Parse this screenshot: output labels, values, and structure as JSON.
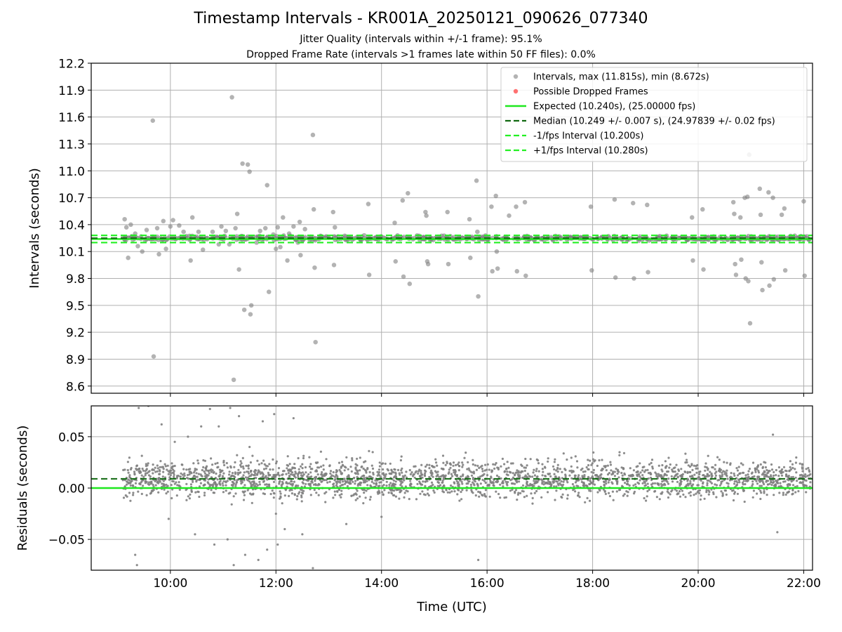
{
  "title": "Timestamp Intervals - KR001A_20250121_090626_077340",
  "subtitle_1": "Jitter Quality (intervals within +/-1 frame): 95.1%",
  "subtitle_2": "Dropped Frame Rate (intervals >1 frames late within 50 FF files): 0.0%",
  "colors": {
    "points": "#808080",
    "dropped": "#ff4d4d",
    "expected": "#1ee81e",
    "median": "#106810",
    "bounds": "#22f022",
    "grid": "#b0b0b0"
  },
  "chart_data": [
    {
      "type": "scatter",
      "ylabel": "Intervals (seconds)",
      "xlabel": "",
      "ylim": [
        8.52,
        12.2
      ],
      "yticks": [
        12.2,
        11.9,
        11.6,
        11.3,
        11.0,
        10.7,
        10.4,
        10.1,
        9.8,
        9.5,
        9.2,
        8.9,
        8.6
      ],
      "ytick_labels": [
        "12.2",
        "11.9",
        "11.6",
        "11.3",
        "11.0",
        "10.7",
        "10.4",
        "10.1",
        "9.8",
        "9.5",
        "9.2",
        "8.9",
        "8.6"
      ],
      "xlim": [
        "08:30",
        "22:10"
      ],
      "grid": true,
      "legend_position": "top-right",
      "legend": [
        {
          "label": "Intervals, max (11.815s), min (8.672s)",
          "marker": "dot-gray"
        },
        {
          "label": "Possible Dropped Frames",
          "marker": "dot-red"
        },
        {
          "label": "Expected (10.240s), (25.00000 fps)",
          "marker": "line-solid-green"
        },
        {
          "label": "Median (10.249 +/- 0.007 s), (24.97839 +/- 0.02 fps)",
          "marker": "line-dashed-darkgreen"
        },
        {
          "label": "-1/fps Interval (10.200s)",
          "marker": "line-dashed-green"
        },
        {
          "label": "+1/fps Interval (10.280s)",
          "marker": "line-dashed-green"
        }
      ],
      "series": [
        {
          "name": "Expected (10.240s), (25.00000 fps)",
          "y": 10.24,
          "style": "solid"
        },
        {
          "name": "Median (10.249 +/- 0.007 s), (24.97839 +/- 0.02 fps)",
          "y": 10.249,
          "style": "dashed"
        },
        {
          "name": "-1/fps Interval (10.200s)",
          "y": 10.2,
          "style": "dashed"
        },
        {
          "name": "+1/fps Interval (10.280s)",
          "y": 10.28,
          "style": "dashed"
        }
      ],
      "core_band": {
        "x_start": "09:06",
        "x_end": "22:08",
        "y_center": 10.249,
        "spread": 0.02
      },
      "outliers": [
        [
          "09:08",
          10.46
        ],
        [
          "09:10",
          10.37
        ],
        [
          "09:12",
          10.03
        ],
        [
          "09:15",
          10.4
        ],
        [
          "09:20",
          10.3
        ],
        [
          "09:23",
          10.16
        ],
        [
          "09:28",
          10.1
        ],
        [
          "09:33",
          10.34
        ],
        [
          "09:40",
          11.56
        ],
        [
          "09:41",
          8.93
        ],
        [
          "09:45",
          10.36
        ],
        [
          "09:47",
          10.07
        ],
        [
          "09:52",
          10.44
        ],
        [
          "09:55",
          10.13
        ],
        [
          "10:00",
          10.38
        ],
        [
          "10:03",
          10.45
        ],
        [
          "10:10",
          10.39
        ],
        [
          "10:15",
          10.32
        ],
        [
          "10:23",
          10.0
        ],
        [
          "10:25",
          10.48
        ],
        [
          "10:32",
          10.32
        ],
        [
          "10:37",
          10.12
        ],
        [
          "10:42",
          10.25
        ],
        [
          "10:48",
          10.32
        ],
        [
          "10:55",
          10.18
        ],
        [
          "10:58",
          10.38
        ],
        [
          "11:03",
          10.33
        ],
        [
          "11:07",
          10.18
        ],
        [
          "11:10",
          11.82
        ],
        [
          "11:12",
          8.67
        ],
        [
          "11:14",
          10.36
        ],
        [
          "11:18",
          9.9
        ],
        [
          "11:16",
          10.52
        ],
        [
          "11:22",
          11.08
        ],
        [
          "11:24",
          9.45
        ],
        [
          "11:28",
          11.07
        ],
        [
          "11:30",
          10.99
        ],
        [
          "11:31",
          9.4
        ],
        [
          "11:32",
          9.5
        ],
        [
          "11:38",
          10.2
        ],
        [
          "11:42",
          10.33
        ],
        [
          "11:48",
          10.36
        ],
        [
          "11:50",
          10.84
        ],
        [
          "11:52",
          9.65
        ],
        [
          "11:57",
          10.29
        ],
        [
          "12:00",
          10.13
        ],
        [
          "12:02",
          10.37
        ],
        [
          "12:05",
          10.15
        ],
        [
          "12:08",
          10.48
        ],
        [
          "12:13",
          10.0
        ],
        [
          "12:15",
          10.3
        ],
        [
          "12:20",
          10.38
        ],
        [
          "12:25",
          10.2
        ],
        [
          "12:27",
          10.43
        ],
        [
          "12:28",
          10.06
        ],
        [
          "12:33",
          10.35
        ],
        [
          "12:42",
          11.4
        ],
        [
          "12:43",
          10.57
        ],
        [
          "12:44",
          9.92
        ],
        [
          "12:45",
          9.09
        ],
        [
          "13:05",
          10.54
        ],
        [
          "13:06",
          9.95
        ],
        [
          "13:07",
          10.37
        ],
        [
          "13:45",
          10.63
        ],
        [
          "13:46",
          9.84
        ],
        [
          "14:15",
          10.42
        ],
        [
          "14:16",
          9.99
        ],
        [
          "14:24",
          10.67
        ],
        [
          "14:25",
          9.82
        ],
        [
          "14:30",
          10.75
        ],
        [
          "14:32",
          9.74
        ],
        [
          "14:50",
          10.54
        ],
        [
          "14:51",
          10.5
        ],
        [
          "14:52",
          9.99
        ],
        [
          "14:53",
          9.96
        ],
        [
          "15:15",
          10.54
        ],
        [
          "15:16",
          9.96
        ],
        [
          "15:40",
          10.46
        ],
        [
          "15:41",
          10.03
        ],
        [
          "15:48",
          10.89
        ],
        [
          "15:49",
          10.32
        ],
        [
          "15:50",
          9.6
        ],
        [
          "16:05",
          10.6
        ],
        [
          "16:06",
          9.88
        ],
        [
          "16:10",
          10.72
        ],
        [
          "16:11",
          10.1
        ],
        [
          "16:12",
          9.91
        ],
        [
          "16:25",
          10.5
        ],
        [
          "16:33",
          10.6
        ],
        [
          "16:34",
          9.88
        ],
        [
          "16:43",
          10.65
        ],
        [
          "16:44",
          9.83
        ],
        [
          "17:58",
          10.6
        ],
        [
          "17:59",
          9.89
        ],
        [
          "18:25",
          10.68
        ],
        [
          "18:26",
          9.81
        ],
        [
          "18:46",
          10.64
        ],
        [
          "18:47",
          9.8
        ],
        [
          "19:02",
          10.62
        ],
        [
          "19:03",
          9.87
        ],
        [
          "19:53",
          10.48
        ],
        [
          "19:54",
          10.0
        ],
        [
          "20:05",
          10.57
        ],
        [
          "20:06",
          9.9
        ],
        [
          "20:40",
          10.65
        ],
        [
          "20:41",
          10.52
        ],
        [
          "20:42",
          9.96
        ],
        [
          "20:43",
          9.84
        ],
        [
          "20:48",
          10.48
        ],
        [
          "20:49",
          10.01
        ],
        [
          "20:53",
          10.7
        ],
        [
          "20:54",
          9.8
        ],
        [
          "20:56",
          10.71
        ],
        [
          "20:57",
          9.77
        ],
        [
          "20:58",
          11.18
        ],
        [
          "20:59",
          9.3
        ],
        [
          "21:10",
          10.8
        ],
        [
          "21:11",
          10.51
        ],
        [
          "21:12",
          9.98
        ],
        [
          "21:13",
          9.67
        ],
        [
          "21:20",
          10.76
        ],
        [
          "21:21",
          9.72
        ],
        [
          "21:25",
          10.7
        ],
        [
          "21:26",
          9.79
        ],
        [
          "21:35",
          10.51
        ],
        [
          "21:38",
          10.58
        ],
        [
          "21:39",
          9.89
        ],
        [
          "22:00",
          10.66
        ],
        [
          "22:01",
          9.83
        ]
      ]
    },
    {
      "type": "scatter",
      "ylabel": "Residuals (seconds)",
      "xlabel": "Time (UTC)",
      "ylim": [
        -0.08,
        0.08
      ],
      "yticks": [
        0.05,
        0.0,
        -0.05
      ],
      "ytick_labels": [
        "0.05",
        "0.00",
        "−0.05"
      ],
      "xlim": [
        "08:30",
        "22:10"
      ],
      "xticks": [
        "10:00",
        "12:00",
        "14:00",
        "16:00",
        "18:00",
        "20:00",
        "22:00"
      ],
      "xtick_labels": [
        "10:00",
        "12:00",
        "14:00",
        "16:00",
        "18:00",
        "20:00",
        "22:00"
      ],
      "grid": true,
      "series": [
        {
          "name": "Expected",
          "y": 0.0,
          "style": "solid"
        },
        {
          "name": "Median",
          "y": 0.009,
          "style": "dashed"
        }
      ],
      "core_band": {
        "x_start": "09:06",
        "x_end": "22:08",
        "y_center": 0.009,
        "spread": 0.02
      },
      "outliers": [
        [
          "09:20",
          -0.065
        ],
        [
          "09:22",
          -0.075
        ],
        [
          "09:24",
          0.078
        ],
        [
          "09:35",
          0.08
        ],
        [
          "09:50",
          0.062
        ],
        [
          "09:58",
          -0.03
        ],
        [
          "10:05",
          0.045
        ],
        [
          "10:20",
          0.05
        ],
        [
          "10:28",
          -0.045
        ],
        [
          "10:35",
          0.06
        ],
        [
          "10:45",
          0.077
        ],
        [
          "10:50",
          -0.055
        ],
        [
          "10:55",
          0.06
        ],
        [
          "11:05",
          -0.05
        ],
        [
          "11:08",
          0.078
        ],
        [
          "11:12",
          -0.075
        ],
        [
          "11:18",
          0.07
        ],
        [
          "11:25",
          -0.065
        ],
        [
          "11:30",
          0.04
        ],
        [
          "11:40",
          -0.07
        ],
        [
          "11:45",
          0.065
        ],
        [
          "11:50",
          -0.06
        ],
        [
          "11:58",
          0.072
        ],
        [
          "12:00",
          -0.025
        ],
        [
          "12:02",
          -0.055
        ],
        [
          "12:10",
          -0.04
        ],
        [
          "12:20",
          0.068
        ],
        [
          "12:30",
          -0.045
        ],
        [
          "12:38",
          0.03
        ],
        [
          "12:42",
          -0.078
        ],
        [
          "13:20",
          -0.035
        ],
        [
          "13:50",
          0.035
        ],
        [
          "14:00",
          -0.028
        ],
        [
          "15:50",
          -0.07
        ],
        [
          "21:25",
          0.052
        ],
        [
          "21:30",
          -0.043
        ]
      ]
    }
  ]
}
